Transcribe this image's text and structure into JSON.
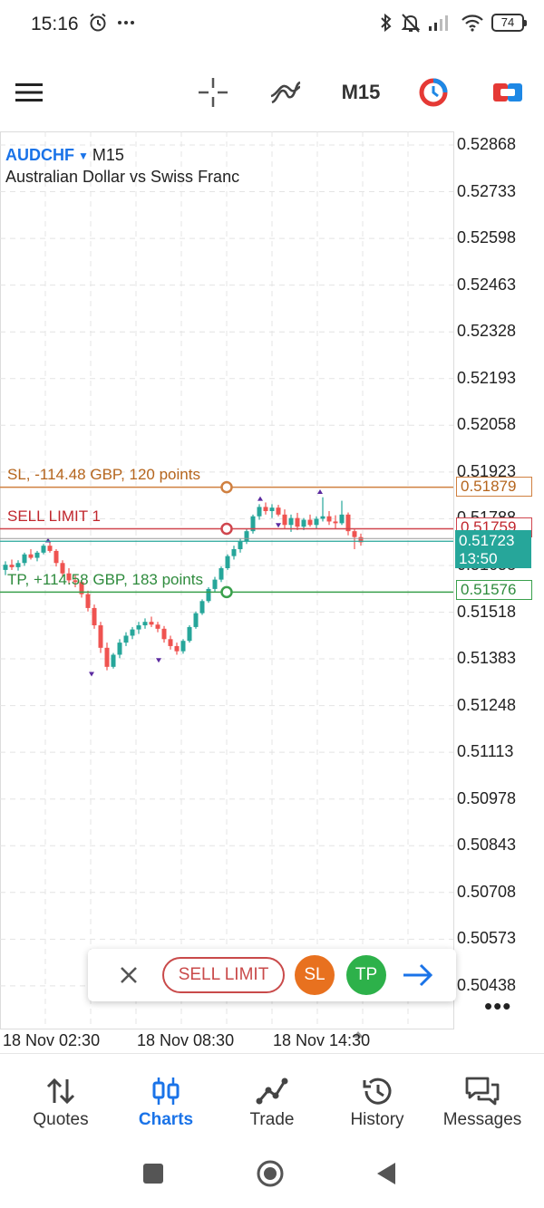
{
  "status_bar": {
    "time": "15:16",
    "left_icons": [
      "alarm-icon",
      "more-dots-icon"
    ],
    "right_icons": [
      "bluetooth-icon",
      "muted-bell-icon",
      "signal-icon",
      "wifi-icon"
    ],
    "battery": "74"
  },
  "toolbar": {
    "items": [
      "menu-icon",
      "crosshair-icon",
      "indicators-icon",
      "timeframe",
      "trade-icon",
      "one-click-trading-icon"
    ],
    "timeframe": "M15"
  },
  "chart": {
    "symbol": "AUDCHF",
    "timeframe": "M15",
    "description": "Australian Dollar vs Swiss Franc",
    "price_scale": [
      "0.52868",
      "0.52733",
      "0.52598",
      "0.52463",
      "0.52328",
      "0.52193",
      "0.52058",
      "0.51923",
      "0.51788",
      "0.51653",
      "0.51518",
      "0.51383",
      "0.51248",
      "0.51113",
      "0.50978",
      "0.50843",
      "0.50708",
      "0.50573",
      "0.50438"
    ],
    "time_scale": [
      "18 Nov 02:30",
      "18 Nov 08:30",
      "18 Nov 14:30"
    ],
    "sl_label": "SL, -114.48 GBP, 120 points",
    "sl_price": "0.51879",
    "order_label": "SELL LIMIT 1",
    "order_price": "0.51759",
    "tp_label": "TP, +114.58 GBP, 183 points",
    "tp_price": "0.51576",
    "bid_price": "0.51723",
    "bar_timer": "13:50",
    "colors": {
      "bull": "#26a69a",
      "bear": "#ef5350",
      "sl": "#d08040",
      "order": "#d0464e",
      "tp": "#3aa04c",
      "grid": "#e4e4e4"
    }
  },
  "trade_panel": {
    "close_icon": "close-icon",
    "sell_limit": "SELL LIMIT",
    "sl": "SL",
    "tp": "TP",
    "go_icon": "arrow-right-icon"
  },
  "more_menu": "•••",
  "bottom_nav": [
    {
      "label": "Quotes",
      "icon": "quotes-icon"
    },
    {
      "label": "Charts",
      "icon": "charts-icon",
      "active": true
    },
    {
      "label": "Trade",
      "icon": "trade-icon"
    },
    {
      "label": "History",
      "icon": "history-icon"
    },
    {
      "label": "Messages",
      "icon": "messages-icon"
    }
  ],
  "system_nav": [
    "recents-icon",
    "home-icon",
    "back-icon"
  ]
}
